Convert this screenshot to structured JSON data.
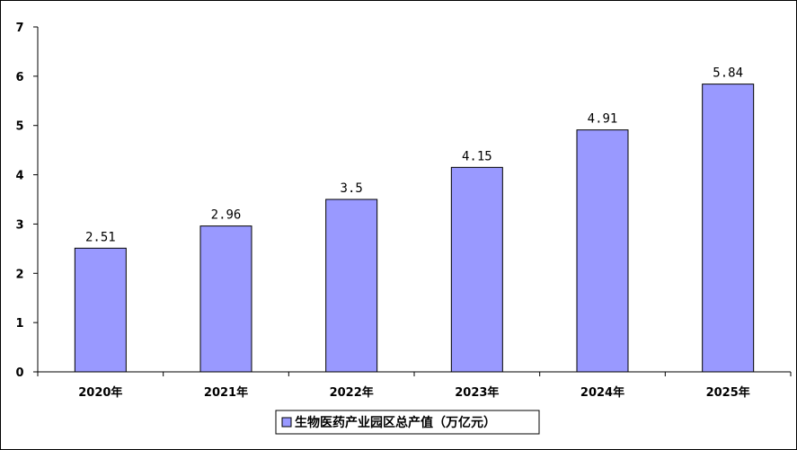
{
  "chart_data": {
    "type": "bar",
    "categories": [
      "2020年",
      "2021年",
      "2022年",
      "2023年",
      "2024年",
      "2025年"
    ],
    "series": [
      {
        "name": "生物医药产业园区总产值（万亿元）",
        "values": [
          2.51,
          2.96,
          3.5,
          4.15,
          4.91,
          5.84
        ],
        "color": "#9999ff"
      }
    ],
    "data_labels": [
      "2.51",
      "2.96",
      "3.5",
      "4.15",
      "4.91",
      "5.84"
    ],
    "yticks": [
      "0",
      "1",
      "2",
      "3",
      "4",
      "5",
      "6",
      "7"
    ],
    "ylim": [
      0,
      7
    ],
    "grid": false,
    "legend_position": "bottom"
  }
}
